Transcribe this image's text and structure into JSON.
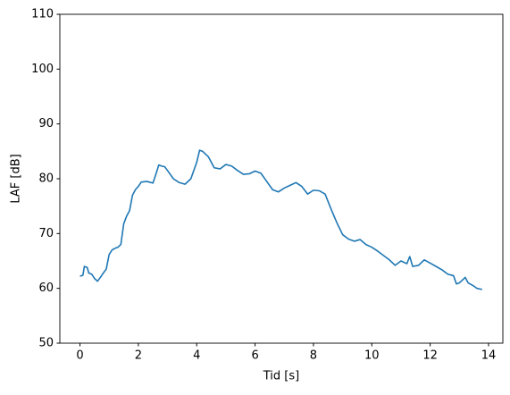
{
  "chart_data": {
    "type": "line",
    "xlabel": "Tid [s]",
    "ylabel": "LAF [dB]",
    "xlim": [
      -0.69,
      14.49
    ],
    "ylim": [
      50,
      110
    ],
    "xticks": [
      0,
      2,
      4,
      6,
      8,
      10,
      12,
      14
    ],
    "yticks": [
      50,
      60,
      70,
      80,
      90,
      100,
      110
    ],
    "grid": false,
    "x": [
      0,
      0.1,
      0.15,
      0.25,
      0.3,
      0.4,
      0.5,
      0.6,
      0.7,
      0.8,
      0.9,
      1.0,
      1.1,
      1.2,
      1.3,
      1.4,
      1.5,
      1.6,
      1.7,
      1.8,
      1.9,
      2.0,
      2.1,
      2.3,
      2.5,
      2.6,
      2.7,
      2.8,
      2.9,
      3.0,
      3.2,
      3.4,
      3.6,
      3.8,
      4.0,
      4.1,
      4.2,
      4.4,
      4.6,
      4.8,
      5.0,
      5.2,
      5.4,
      5.6,
      5.8,
      6.0,
      6.2,
      6.4,
      6.6,
      6.8,
      7.0,
      7.2,
      7.4,
      7.6,
      7.8,
      8.0,
      8.2,
      8.4,
      8.6,
      8.8,
      9.0,
      9.2,
      9.4,
      9.6,
      9.8,
      10.0,
      10.2,
      10.4,
      10.6,
      10.8,
      11.0,
      11.2,
      11.3,
      11.4,
      11.6,
      11.8,
      12.0,
      12.2,
      12.4,
      12.6,
      12.8,
      12.9,
      13.0,
      13.2,
      13.3,
      13.5,
      13.6,
      13.78
    ],
    "series": [
      {
        "name": "LAF",
        "color": "#1f77b4",
        "values": [
          62.2,
          62.4,
          64.0,
          63.8,
          62.8,
          62.6,
          61.8,
          61.3,
          62.0,
          62.8,
          63.5,
          66.2,
          67.0,
          67.3,
          67.5,
          68.0,
          71.8,
          73.2,
          74.2,
          77.0,
          78.0,
          78.6,
          79.4,
          79.5,
          79.2,
          80.8,
          82.5,
          82.3,
          82.2,
          81.5,
          80.0,
          79.3,
          79.0,
          80.0,
          83.0,
          85.2,
          85.0,
          84.0,
          82.0,
          81.8,
          82.6,
          82.3,
          81.5,
          80.8,
          80.9,
          81.4,
          81.0,
          79.5,
          78.0,
          77.6,
          78.3,
          78.8,
          79.3,
          78.6,
          77.2,
          77.9,
          77.8,
          77.2,
          74.5,
          72.0,
          69.8,
          69.0,
          68.6,
          68.9,
          68.0,
          67.5,
          66.8,
          66.0,
          65.2,
          64.2,
          65.0,
          64.5,
          65.8,
          64.0,
          64.2,
          65.2,
          64.6,
          64.0,
          63.4,
          62.6,
          62.3,
          60.8,
          61.0,
          62.0,
          61.0,
          60.4,
          60.0,
          59.8
        ]
      }
    ]
  }
}
